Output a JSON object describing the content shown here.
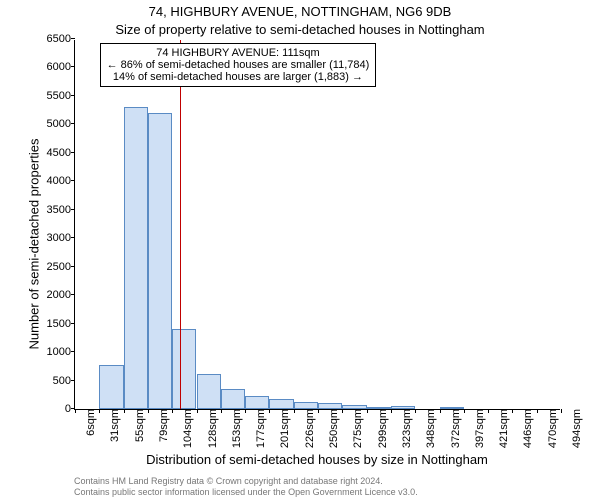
{
  "title_line1": "74, HIGHBURY AVENUE, NOTTINGHAM, NG6 9DB",
  "title_line2": "Size of property relative to semi-detached houses in Nottingham",
  "ylabel": "Number of semi-detached properties",
  "xlabel": "Distribution of semi-detached houses by size in Nottingham",
  "chart": {
    "type": "histogram",
    "background_color": "#ffffff",
    "bar_fill": "#cfe0f5",
    "bar_border": "#5a8bc4",
    "refline_color": "#c00000",
    "ylim": [
      0,
      6500
    ],
    "ytick_step": 500,
    "bin_labels": [
      "6sqm",
      "31sqm",
      "55sqm",
      "79sqm",
      "104sqm",
      "128sqm",
      "153sqm",
      "177sqm",
      "201sqm",
      "226sqm",
      "250sqm",
      "275sqm",
      "299sqm",
      "323sqm",
      "348sqm",
      "372sqm",
      "397sqm",
      "421sqm",
      "446sqm",
      "470sqm",
      "494sqm"
    ],
    "values": [
      0,
      780,
      5300,
      5200,
      1400,
      620,
      350,
      230,
      180,
      130,
      100,
      70,
      10,
      60,
      0,
      5,
      0,
      0,
      0,
      0
    ],
    "ref_position_sqm": 111,
    "annotation": {
      "line1": "74 HIGHBURY AVENUE: 111sqm",
      "line2": "← 86% of semi-detached houses are smaller (11,784)",
      "line3": "14% of semi-detached houses are larger (1,883) →"
    }
  },
  "footer_line1": "Contains HM Land Registry data © Crown copyright and database right 2024.",
  "footer_line2": "Contains public sector information licensed under the Open Government Licence v3.0."
}
